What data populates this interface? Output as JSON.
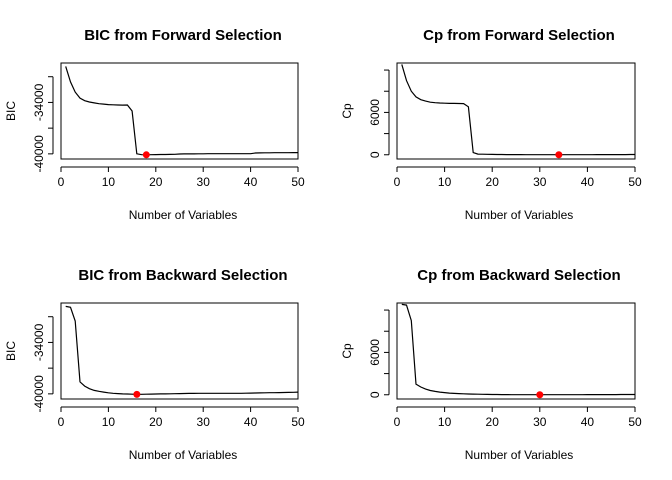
{
  "chart_data": [
    {
      "type": "line",
      "title": "BIC from Forward Selection",
      "xlabel": "Number of Variables",
      "ylabel": "BIC",
      "xlim": [
        0,
        50
      ],
      "ylim": [
        -40600,
        -29400
      ],
      "x_ticks": [
        0,
        10,
        20,
        30,
        40,
        50
      ],
      "y_ticks": [
        -40000,
        -34000
      ],
      "x": [
        1,
        2,
        3,
        4,
        5,
        6,
        7,
        8,
        9,
        10,
        11,
        12,
        13,
        14,
        15,
        16,
        17,
        18,
        19,
        20,
        21,
        22,
        23,
        24,
        25,
        26,
        27,
        28,
        29,
        30,
        31,
        32,
        33,
        34,
        35,
        36,
        37,
        38,
        39,
        40,
        41,
        42,
        43,
        44,
        45,
        46,
        47,
        48,
        49,
        50
      ],
      "values": [
        -29800,
        -31600,
        -32800,
        -33500,
        -33800,
        -33950,
        -34050,
        -34150,
        -34200,
        -34250,
        -34280,
        -34300,
        -34310,
        -34300,
        -35000,
        -39990,
        -40100,
        -40110,
        -40100,
        -40090,
        -40080,
        -40070,
        -40060,
        -40050,
        -40020,
        -40010,
        -40000,
        -40000,
        -39990,
        -39990,
        -39980,
        -39980,
        -39980,
        -39980,
        -39980,
        -39980,
        -39980,
        -39980,
        -39980,
        -39980,
        -39900,
        -39890,
        -39880,
        -39880,
        -39870,
        -39870,
        -39860,
        -39860,
        -39850,
        -39850
      ],
      "highlight": {
        "x": 18,
        "y": -40110,
        "color": "#ff0000"
      }
    },
    {
      "type": "line",
      "title": "Cp from Forward Selection",
      "xlabel": "Number of Variables",
      "ylabel": "Cp",
      "xlim": [
        0,
        50
      ],
      "ylim": [
        -600,
        13000
      ],
      "x_ticks": [
        0,
        10,
        20,
        30,
        40,
        50
      ],
      "y_ticks": [
        0,
        6000
      ],
      "x": [
        1,
        2,
        3,
        4,
        5,
        6,
        7,
        8,
        9,
        10,
        11,
        12,
        13,
        14,
        15,
        16,
        17,
        18,
        19,
        20,
        21,
        22,
        23,
        24,
        25,
        26,
        27,
        28,
        29,
        30,
        31,
        32,
        33,
        34,
        35,
        36,
        37,
        38,
        39,
        40,
        41,
        42,
        43,
        44,
        45,
        46,
        47,
        48,
        49,
        50
      ],
      "values": [
        12800,
        10500,
        9000,
        8200,
        7800,
        7600,
        7450,
        7380,
        7330,
        7300,
        7280,
        7270,
        7260,
        7250,
        6800,
        300,
        100,
        80,
        60,
        50,
        40,
        35,
        30,
        25,
        20,
        18,
        15,
        12,
        10,
        8,
        6,
        5,
        4,
        2,
        4,
        6,
        8,
        10,
        12,
        14,
        16,
        18,
        20,
        22,
        24,
        26,
        28,
        30,
        32,
        35
      ],
      "highlight": {
        "x": 34,
        "y": 2,
        "color": "#ff0000"
      }
    },
    {
      "type": "line",
      "title": "BIC from Backward Selection",
      "xlabel": "Number of Variables",
      "ylabel": "BIC",
      "xlim": [
        0,
        50
      ],
      "ylim": [
        -40600,
        -29400
      ],
      "x_ticks": [
        0,
        10,
        20,
        30,
        40,
        50
      ],
      "y_ticks": [
        -40000,
        -34000
      ],
      "x": [
        1,
        2,
        3,
        4,
        5,
        6,
        7,
        8,
        9,
        10,
        11,
        12,
        13,
        14,
        15,
        16,
        17,
        18,
        19,
        20,
        21,
        22,
        23,
        24,
        25,
        26,
        27,
        28,
        29,
        30,
        31,
        32,
        33,
        34,
        35,
        36,
        37,
        38,
        39,
        40,
        41,
        42,
        43,
        44,
        45,
        46,
        47,
        48,
        49,
        50
      ],
      "values": [
        -29800,
        -29900,
        -31500,
        -38600,
        -39100,
        -39400,
        -39600,
        -39700,
        -39800,
        -39880,
        -39930,
        -39970,
        -40000,
        -40020,
        -40040,
        -40060,
        -40050,
        -40040,
        -40030,
        -40020,
        -40010,
        -40000,
        -39990,
        -39980,
        -39970,
        -39960,
        -39950,
        -39950,
        -39940,
        -39940,
        -39930,
        -39930,
        -39930,
        -39930,
        -39930,
        -39930,
        -39930,
        -39930,
        -39920,
        -39910,
        -39900,
        -39890,
        -39880,
        -39870,
        -39860,
        -39850,
        -39840,
        -39830,
        -39820,
        -39800
      ],
      "highlight": {
        "x": 16,
        "y": -40060,
        "color": "#ff0000"
      }
    },
    {
      "type": "line",
      "title": "Cp from Backward Selection",
      "xlabel": "Number of Variables",
      "ylabel": "Cp",
      "xlim": [
        0,
        50
      ],
      "ylim": [
        -600,
        13000
      ],
      "x_ticks": [
        0,
        10,
        20,
        30,
        40,
        50
      ],
      "y_ticks": [
        0,
        6000
      ],
      "x": [
        1,
        2,
        3,
        4,
        5,
        6,
        7,
        8,
        9,
        10,
        11,
        12,
        13,
        14,
        15,
        16,
        17,
        18,
        19,
        20,
        21,
        22,
        23,
        24,
        25,
        26,
        27,
        28,
        29,
        30,
        31,
        32,
        33,
        34,
        35,
        36,
        37,
        38,
        39,
        40,
        41,
        42,
        43,
        44,
        45,
        46,
        47,
        48,
        49,
        50
      ],
      "values": [
        12800,
        12700,
        10500,
        1500,
        1100,
        800,
        600,
        480,
        380,
        300,
        240,
        200,
        160,
        130,
        110,
        90,
        75,
        60,
        50,
        40,
        32,
        26,
        20,
        15,
        12,
        9,
        7,
        5,
        3,
        2,
        3,
        4,
        5,
        6,
        8,
        10,
        12,
        14,
        16,
        18,
        20,
        22,
        24,
        26,
        28,
        30,
        32,
        34,
        36,
        38
      ],
      "highlight": {
        "x": 30,
        "y": 2,
        "color": "#ff0000"
      }
    }
  ]
}
